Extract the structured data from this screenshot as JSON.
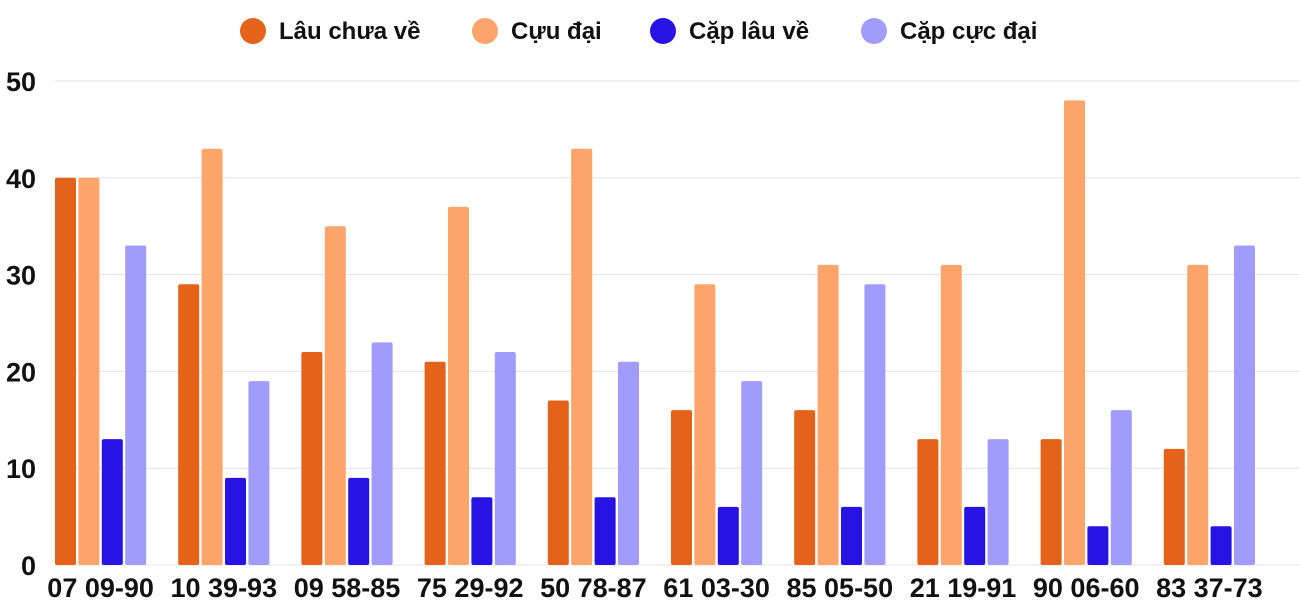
{
  "chart_data": {
    "type": "bar",
    "title": "",
    "xlabel": "",
    "ylabel": "",
    "ylim": [
      0,
      50
    ],
    "yticks": [
      0,
      10,
      20,
      30,
      40,
      50
    ],
    "grid": true,
    "legend_position": "top-center",
    "categories": [
      "07 09-90",
      "10 39-93",
      "09 58-85",
      "75 29-92",
      "50 78-87",
      "61 03-30",
      "85 05-50",
      "21 19-91",
      "90 06-60",
      "83 37-73"
    ],
    "series": [
      {
        "name": "Lâu chưa về",
        "color": "#e4621a",
        "values": [
          40,
          29,
          22,
          21,
          17,
          16,
          16,
          13,
          13,
          12
        ]
      },
      {
        "name": "Cựu đại",
        "color": "#fda46a",
        "values": [
          40,
          43,
          35,
          37,
          43,
          29,
          31,
          31,
          48,
          31
        ]
      },
      {
        "name": "Cặp lâu về",
        "color": "#2713e3",
        "values": [
          13,
          9,
          9,
          7,
          7,
          6,
          6,
          6,
          4,
          4
        ]
      },
      {
        "name": "Cặp cực đại",
        "color": "#a19cfc",
        "values": [
          33,
          19,
          23,
          22,
          21,
          19,
          29,
          13,
          16,
          33
        ]
      }
    ]
  }
}
